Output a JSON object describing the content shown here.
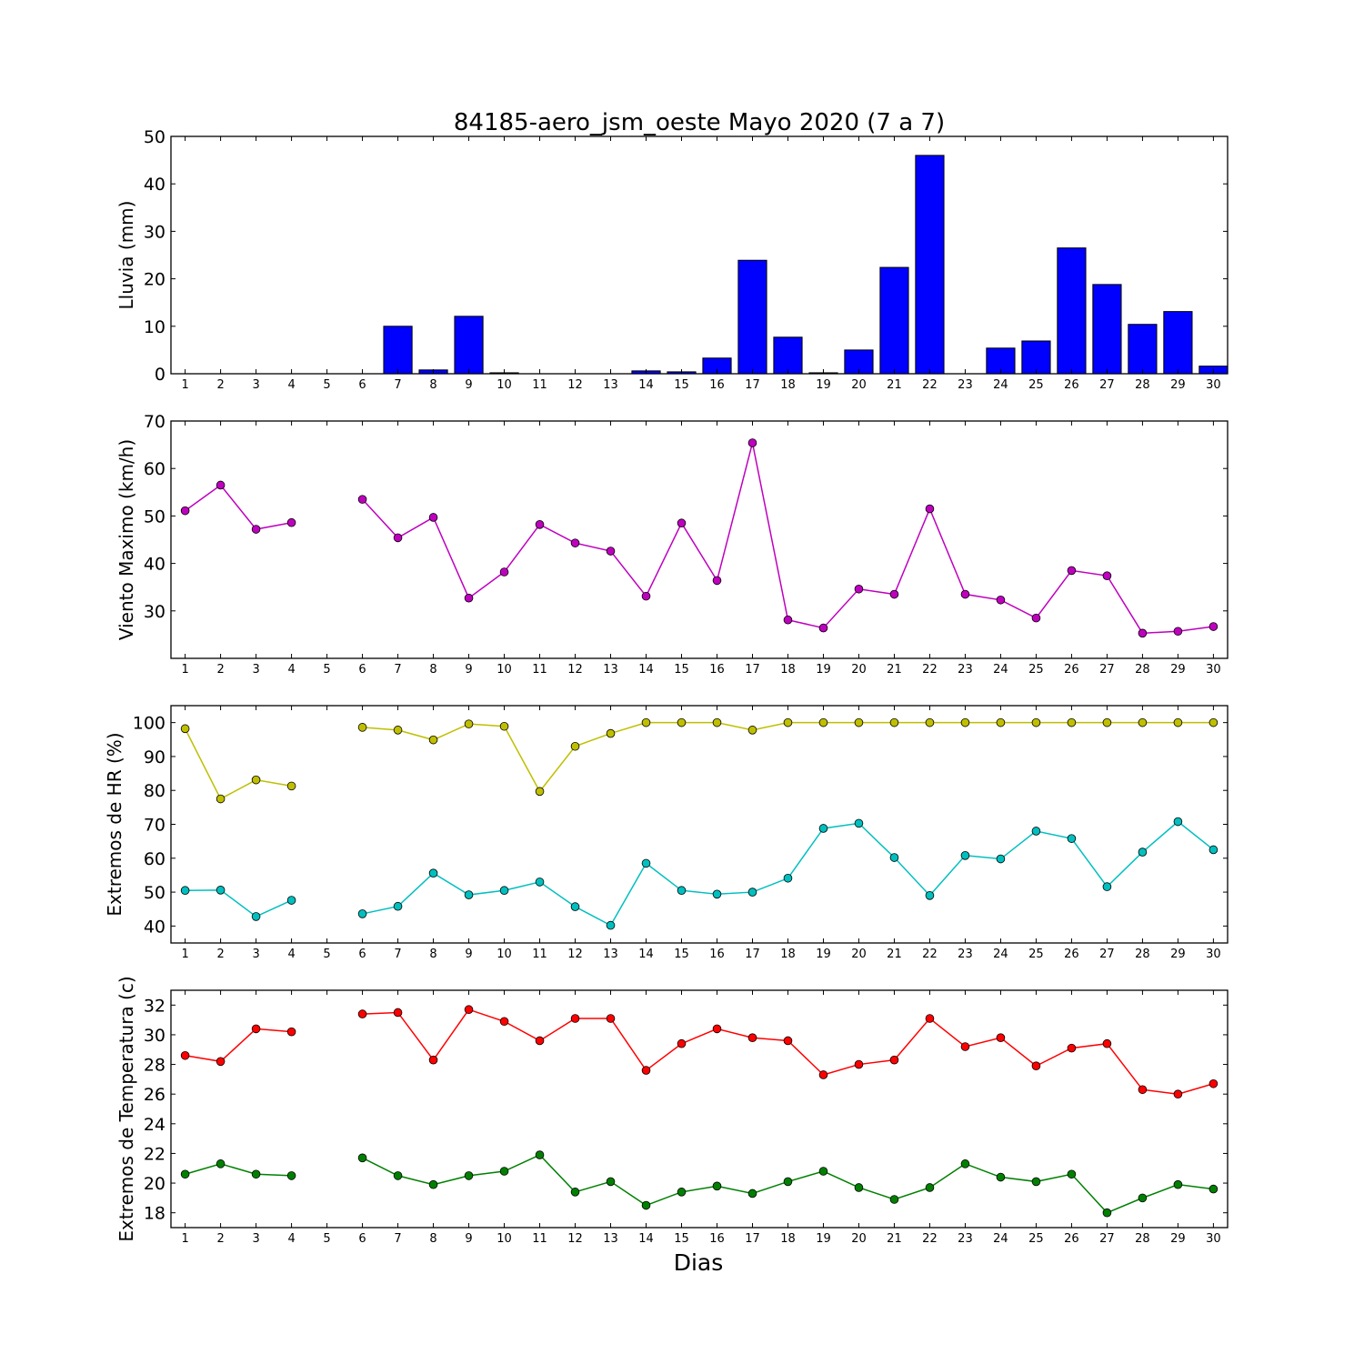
{
  "title": "84185-aero_jsm_oeste Mayo 2020  (7 a 7)",
  "xlabel": "Dias",
  "chart_data": [
    {
      "type": "bar",
      "ylabel": "Lluvia (mm)",
      "x": [
        1,
        2,
        3,
        4,
        5,
        6,
        7,
        8,
        9,
        10,
        11,
        12,
        13,
        14,
        15,
        16,
        17,
        18,
        19,
        20,
        21,
        22,
        23,
        24,
        25,
        26,
        27,
        28,
        29,
        30
      ],
      "series": [
        {
          "color": "#0000ff",
          "values": [
            0,
            0,
            0,
            0,
            0,
            0,
            10.0,
            0.8,
            12.1,
            0.2,
            0,
            0,
            0,
            0.6,
            0.4,
            3.3,
            23.9,
            7.7,
            0.2,
            5.0,
            22.4,
            46.0,
            0,
            5.4,
            6.9,
            26.5,
            18.8,
            10.4,
            13.1,
            1.6
          ]
        }
      ],
      "ylim": [
        0,
        50
      ],
      "yticks": [
        0,
        10,
        20,
        30,
        40,
        50
      ]
    },
    {
      "type": "line",
      "ylabel": "Viento Maximo (km/h)",
      "x": [
        1,
        2,
        3,
        4,
        5,
        6,
        7,
        8,
        9,
        10,
        11,
        12,
        13,
        14,
        15,
        16,
        17,
        18,
        19,
        20,
        21,
        22,
        23,
        24,
        25,
        26,
        27,
        28,
        29,
        30
      ],
      "series": [
        {
          "color": "#bf00bf",
          "values": [
            51.1,
            56.5,
            47.2,
            48.6,
            null,
            53.5,
            45.4,
            49.7,
            32.7,
            38.2,
            48.2,
            44.3,
            42.6,
            33.1,
            48.5,
            36.4,
            65.4,
            28.1,
            26.4,
            34.6,
            33.5,
            51.5,
            33.5,
            32.3,
            28.5,
            38.5,
            37.4,
            25.3,
            25.7,
            26.7
          ]
        }
      ],
      "ylim": [
        20,
        70
      ],
      "yticks": [
        30,
        40,
        50,
        60,
        70
      ]
    },
    {
      "type": "line",
      "ylabel": "Extremos de HR (%)",
      "x": [
        1,
        2,
        3,
        4,
        5,
        6,
        7,
        8,
        9,
        10,
        11,
        12,
        13,
        14,
        15,
        16,
        17,
        18,
        19,
        20,
        21,
        22,
        23,
        24,
        25,
        26,
        27,
        28,
        29,
        30
      ],
      "series": [
        {
          "color": "#bfbf00",
          "values": [
            98.2,
            77.5,
            83.1,
            81.3,
            null,
            98.6,
            97.8,
            94.9,
            99.6,
            98.9,
            79.7,
            93.0,
            96.8,
            100,
            100,
            100,
            97.8,
            100,
            100,
            100,
            100,
            100,
            100,
            100,
            100,
            100,
            100,
            100,
            100,
            100
          ]
        },
        {
          "color": "#00bfbf",
          "values": [
            50.5,
            50.6,
            42.8,
            47.6,
            null,
            43.6,
            45.8,
            55.6,
            49.2,
            50.5,
            53.0,
            45.7,
            40.2,
            58.5,
            50.5,
            49.4,
            50.0,
            54.1,
            68.8,
            70.3,
            60.2,
            49.0,
            60.8,
            59.8,
            68.0,
            65.8,
            51.6,
            61.8,
            70.8,
            62.5
          ]
        }
      ],
      "ylim": [
        35,
        105
      ],
      "yticks": [
        40,
        50,
        60,
        70,
        80,
        90,
        100
      ]
    },
    {
      "type": "line",
      "ylabel": "Extremos de Temperatura (c)",
      "x": [
        1,
        2,
        3,
        4,
        5,
        6,
        7,
        8,
        9,
        10,
        11,
        12,
        13,
        14,
        15,
        16,
        17,
        18,
        19,
        20,
        21,
        22,
        23,
        24,
        25,
        26,
        27,
        28,
        29,
        30
      ],
      "series": [
        {
          "color": "#ff0000",
          "values": [
            28.6,
            28.2,
            30.4,
            30.2,
            null,
            31.4,
            31.5,
            28.3,
            31.7,
            30.9,
            29.6,
            31.1,
            31.1,
            27.6,
            29.4,
            30.4,
            29.8,
            29.6,
            27.3,
            28.0,
            28.3,
            31.1,
            29.2,
            29.8,
            27.9,
            29.1,
            29.4,
            26.3,
            26.0,
            26.7
          ]
        },
        {
          "color": "#008000",
          "values": [
            20.6,
            21.3,
            20.6,
            20.5,
            null,
            21.7,
            20.5,
            19.9,
            20.5,
            20.8,
            21.9,
            19.4,
            20.1,
            18.5,
            19.4,
            19.8,
            19.3,
            20.1,
            20.8,
            19.7,
            18.9,
            19.7,
            21.3,
            20.4,
            20.1,
            20.6,
            18.0,
            19.0,
            19.9,
            19.6
          ]
        }
      ],
      "ylim": [
        17,
        33
      ],
      "yticks": [
        18,
        20,
        22,
        24,
        26,
        28,
        30,
        32
      ]
    }
  ]
}
